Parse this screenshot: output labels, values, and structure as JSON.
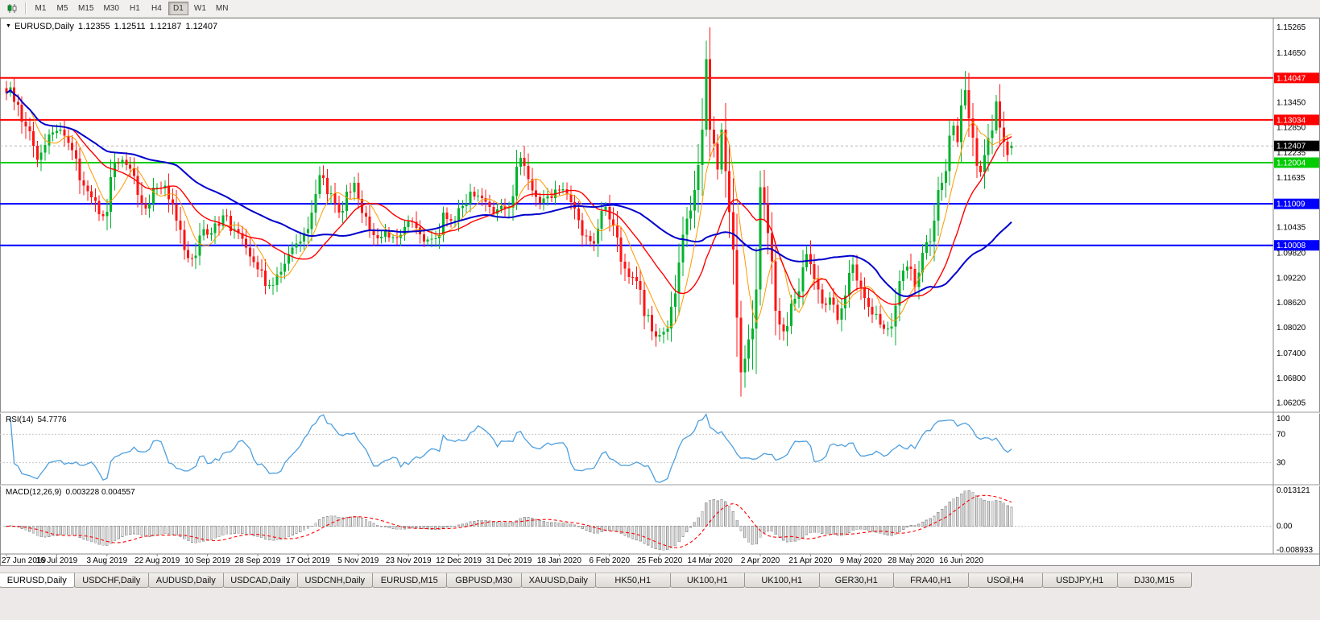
{
  "toolbar": {
    "timeframes": [
      "M1",
      "M5",
      "M15",
      "M30",
      "H1",
      "H4",
      "D1",
      "W1",
      "MN"
    ],
    "active": "D1"
  },
  "chart": {
    "title": "EURUSD,Daily",
    "open": "1.12355",
    "high": "1.12511",
    "low": "1.12187",
    "close": "1.12407"
  },
  "chart_data": {
    "type": "candlestick",
    "symbol": "EURUSD",
    "timeframe": "Daily",
    "y_axis": {
      "range": [
        1.06,
        1.155
      ],
      "ticks": [
        1.15265,
        1.1465,
        1.1345,
        1.1285,
        1.12235,
        1.11635,
        1.10435,
        1.0982,
        1.0922,
        1.0862,
        1.0802,
        1.074,
        1.068,
        1.06205
      ]
    },
    "x_labels": [
      "27 Jun 2019",
      "16 Jul 2019",
      "3 Aug 2019",
      "22 Aug 2019",
      "10 Sep 2019",
      "28 Sep 2019",
      "17 Oct 2019",
      "5 Nov 2019",
      "23 Nov 2019",
      "12 Dec 2019",
      "31 Dec 2019",
      "18 Jan 2020",
      "6 Feb 2020",
      "25 Feb 2020",
      "14 Mar 2020",
      "2 Apr 2020",
      "21 Apr 2020",
      "9 May 2020",
      "28 May 2020",
      "16 Jun 2020"
    ],
    "bars_per_label": 13,
    "bar_count": 261,
    "close_anchors": [
      [
        0,
        1.1368
      ],
      [
        1,
        1.1382
      ],
      [
        3,
        1.134
      ],
      [
        5,
        1.1288
      ],
      [
        8,
        1.1207
      ],
      [
        11,
        1.1268
      ],
      [
        14,
        1.128
      ],
      [
        17,
        1.123
      ],
      [
        20,
        1.1145
      ],
      [
        23,
        1.1108
      ],
      [
        24,
        1.1076
      ],
      [
        26,
        1.1082
      ],
      [
        28,
        1.12
      ],
      [
        31,
        1.1195
      ],
      [
        33,
        1.1168
      ],
      [
        36,
        1.109
      ],
      [
        38,
        1.114
      ],
      [
        41,
        1.1145
      ],
      [
        44,
        1.106
      ],
      [
        46,
        1.099
      ],
      [
        48,
        1.097
      ],
      [
        51,
        1.104
      ],
      [
        53,
        1.103
      ],
      [
        56,
        1.1073
      ],
      [
        59,
        1.104
      ],
      [
        61,
        1.1017
      ],
      [
        64,
        1.096
      ],
      [
        66,
        1.094
      ],
      [
        68,
        1.0905
      ],
      [
        70,
        1.093
      ],
      [
        73,
        1.098
      ],
      [
        75,
        1.1005
      ],
      [
        78,
        1.104
      ],
      [
        81,
        1.117
      ],
      [
        83,
        1.1125
      ],
      [
        86,
        1.108
      ],
      [
        88,
        1.113
      ],
      [
        90,
        1.1152
      ],
      [
        93,
        1.107
      ],
      [
        96,
        1.1018
      ],
      [
        98,
        1.1035
      ],
      [
        100,
        1.1021
      ],
      [
        103,
        1.1045
      ],
      [
        105,
        1.1058
      ],
      [
        108,
        1.101
      ],
      [
        111,
        1.1018
      ],
      [
        113,
        1.108
      ],
      [
        116,
        1.106
      ],
      [
        118,
        1.1095
      ],
      [
        120,
        1.113
      ],
      [
        123,
        1.1115
      ],
      [
        126,
        1.1077
      ],
      [
        129,
        1.109
      ],
      [
        131,
        1.112
      ],
      [
        133,
        1.1212
      ],
      [
        135,
        1.116
      ],
      [
        138,
        1.1103
      ],
      [
        141,
        1.1115
      ],
      [
        144,
        1.1136
      ],
      [
        147,
        1.109
      ],
      [
        150,
        1.1024
      ],
      [
        152,
        1.1005
      ],
      [
        155,
        1.1093
      ],
      [
        157,
        1.1048
      ],
      [
        160,
        1.0945
      ],
      [
        163,
        1.0915
      ],
      [
        165,
        1.083
      ],
      [
        169,
        1.0785
      ],
      [
        171,
        1.08
      ],
      [
        173,
        1.0885
      ],
      [
        175,
        1.1026
      ],
      [
        177,
        1.1085
      ],
      [
        178,
        1.1134
      ],
      [
        180,
        1.128
      ],
      [
        181,
        1.145
      ],
      [
        182,
        1.128
      ],
      [
        184,
        1.1184
      ],
      [
        185,
        1.128
      ],
      [
        186,
        1.118
      ],
      [
        188,
        1.099
      ],
      [
        190,
        1.0694
      ],
      [
        191,
        1.0727
      ],
      [
        193,
        1.08
      ],
      [
        195,
        1.1141
      ],
      [
        197,
        1.103
      ],
      [
        198,
        1.0962
      ],
      [
        200,
        1.081
      ],
      [
        201,
        1.0793
      ],
      [
        203,
        1.086
      ],
      [
        205,
        1.089
      ],
      [
        207,
        1.098
      ],
      [
        209,
        1.092
      ],
      [
        211,
        1.086
      ],
      [
        213,
        1.0875
      ],
      [
        215,
        1.0821
      ],
      [
        217,
        1.088
      ],
      [
        219,
        1.0955
      ],
      [
        221,
        1.09
      ],
      [
        224,
        1.0834
      ],
      [
        226,
        1.081
      ],
      [
        229,
        1.0805
      ],
      [
        231,
        1.0915
      ],
      [
        233,
        1.095
      ],
      [
        235,
        1.09
      ],
      [
        237,
        1.0983
      ],
      [
        239,
        1.101
      ],
      [
        241,
        1.1134
      ],
      [
        243,
        1.118
      ],
      [
        245,
        1.129
      ],
      [
        246,
        1.125
      ],
      [
        248,
        1.1375
      ],
      [
        250,
        1.126
      ],
      [
        252,
        1.1177
      ],
      [
        254,
        1.126
      ],
      [
        256,
        1.1348
      ],
      [
        258,
        1.1251
      ],
      [
        259,
        1.1219
      ],
      [
        260,
        1.12407
      ]
    ],
    "bar_overrides": {
      "181": {
        "high": 1.1495
      },
      "190": {
        "low": 1.0636
      },
      "248": {
        "high": 1.1422
      },
      "260": {
        "open": 1.12355,
        "high": 1.12511,
        "low": 1.12187,
        "close": 1.12407
      }
    },
    "horizontal_lines": [
      {
        "price": 1.14047,
        "label": "1.14047",
        "color": "#FF0000"
      },
      {
        "price": 1.13034,
        "label": "1.13034",
        "color": "#FF0000"
      },
      {
        "price": 1.12004,
        "label": "1.12004",
        "color": "#00CC00"
      },
      {
        "price": 1.11009,
        "label": "1.11009",
        "color": "#0000FF"
      },
      {
        "price": 1.10008,
        "label": "1.10008",
        "color": "#0000FF"
      }
    ],
    "current_price": {
      "value": 1.12407,
      "label": "1.12407",
      "box_color": "#000000"
    },
    "moving_averages": [
      {
        "period": 7,
        "color": "#FF9900",
        "width": 1
      },
      {
        "period": 18,
        "color": "#FF0000",
        "width": 1.4
      },
      {
        "period": 45,
        "color": "#0000CC",
        "width": 2
      }
    ],
    "candle_colors": {
      "up": "#00B22C",
      "down": "#FF1414"
    },
    "indicators": [
      {
        "name": "rsi",
        "label": "RSI(14)",
        "value": "54.7776",
        "levels": [
          70,
          30
        ],
        "scale_labels": [
          "100",
          "70",
          "30"
        ],
        "line_color": "#4E9FDE"
      },
      {
        "name": "macd",
        "label": "MACD(12,26,9)",
        "value": "0.003228 0.004557",
        "scale": {
          "max": 0.013121,
          "min": -0.008933
        },
        "scale_labels": [
          "0.013121",
          "0.00",
          "-0.008933"
        ],
        "histogram_color": "#DCDCDC",
        "histogram_border": "#9C9C9C",
        "signal_color": "#FF0000"
      }
    ]
  },
  "tabs": {
    "items": [
      "EURUSD,Daily",
      "USDCHF,Daily",
      "AUDUSD,Daily",
      "USDCAD,Daily",
      "USDCNH,Daily",
      "EURUSD,M15",
      "GBPUSD,M30",
      "XAUUSD,Daily",
      "HK50,H1",
      "UK100,H1",
      "UK100,H1",
      "GER30,H1",
      "FRA40,H1",
      "USOil,H4",
      "USDJPY,H1",
      "DJ30,M15"
    ],
    "active": 0
  }
}
